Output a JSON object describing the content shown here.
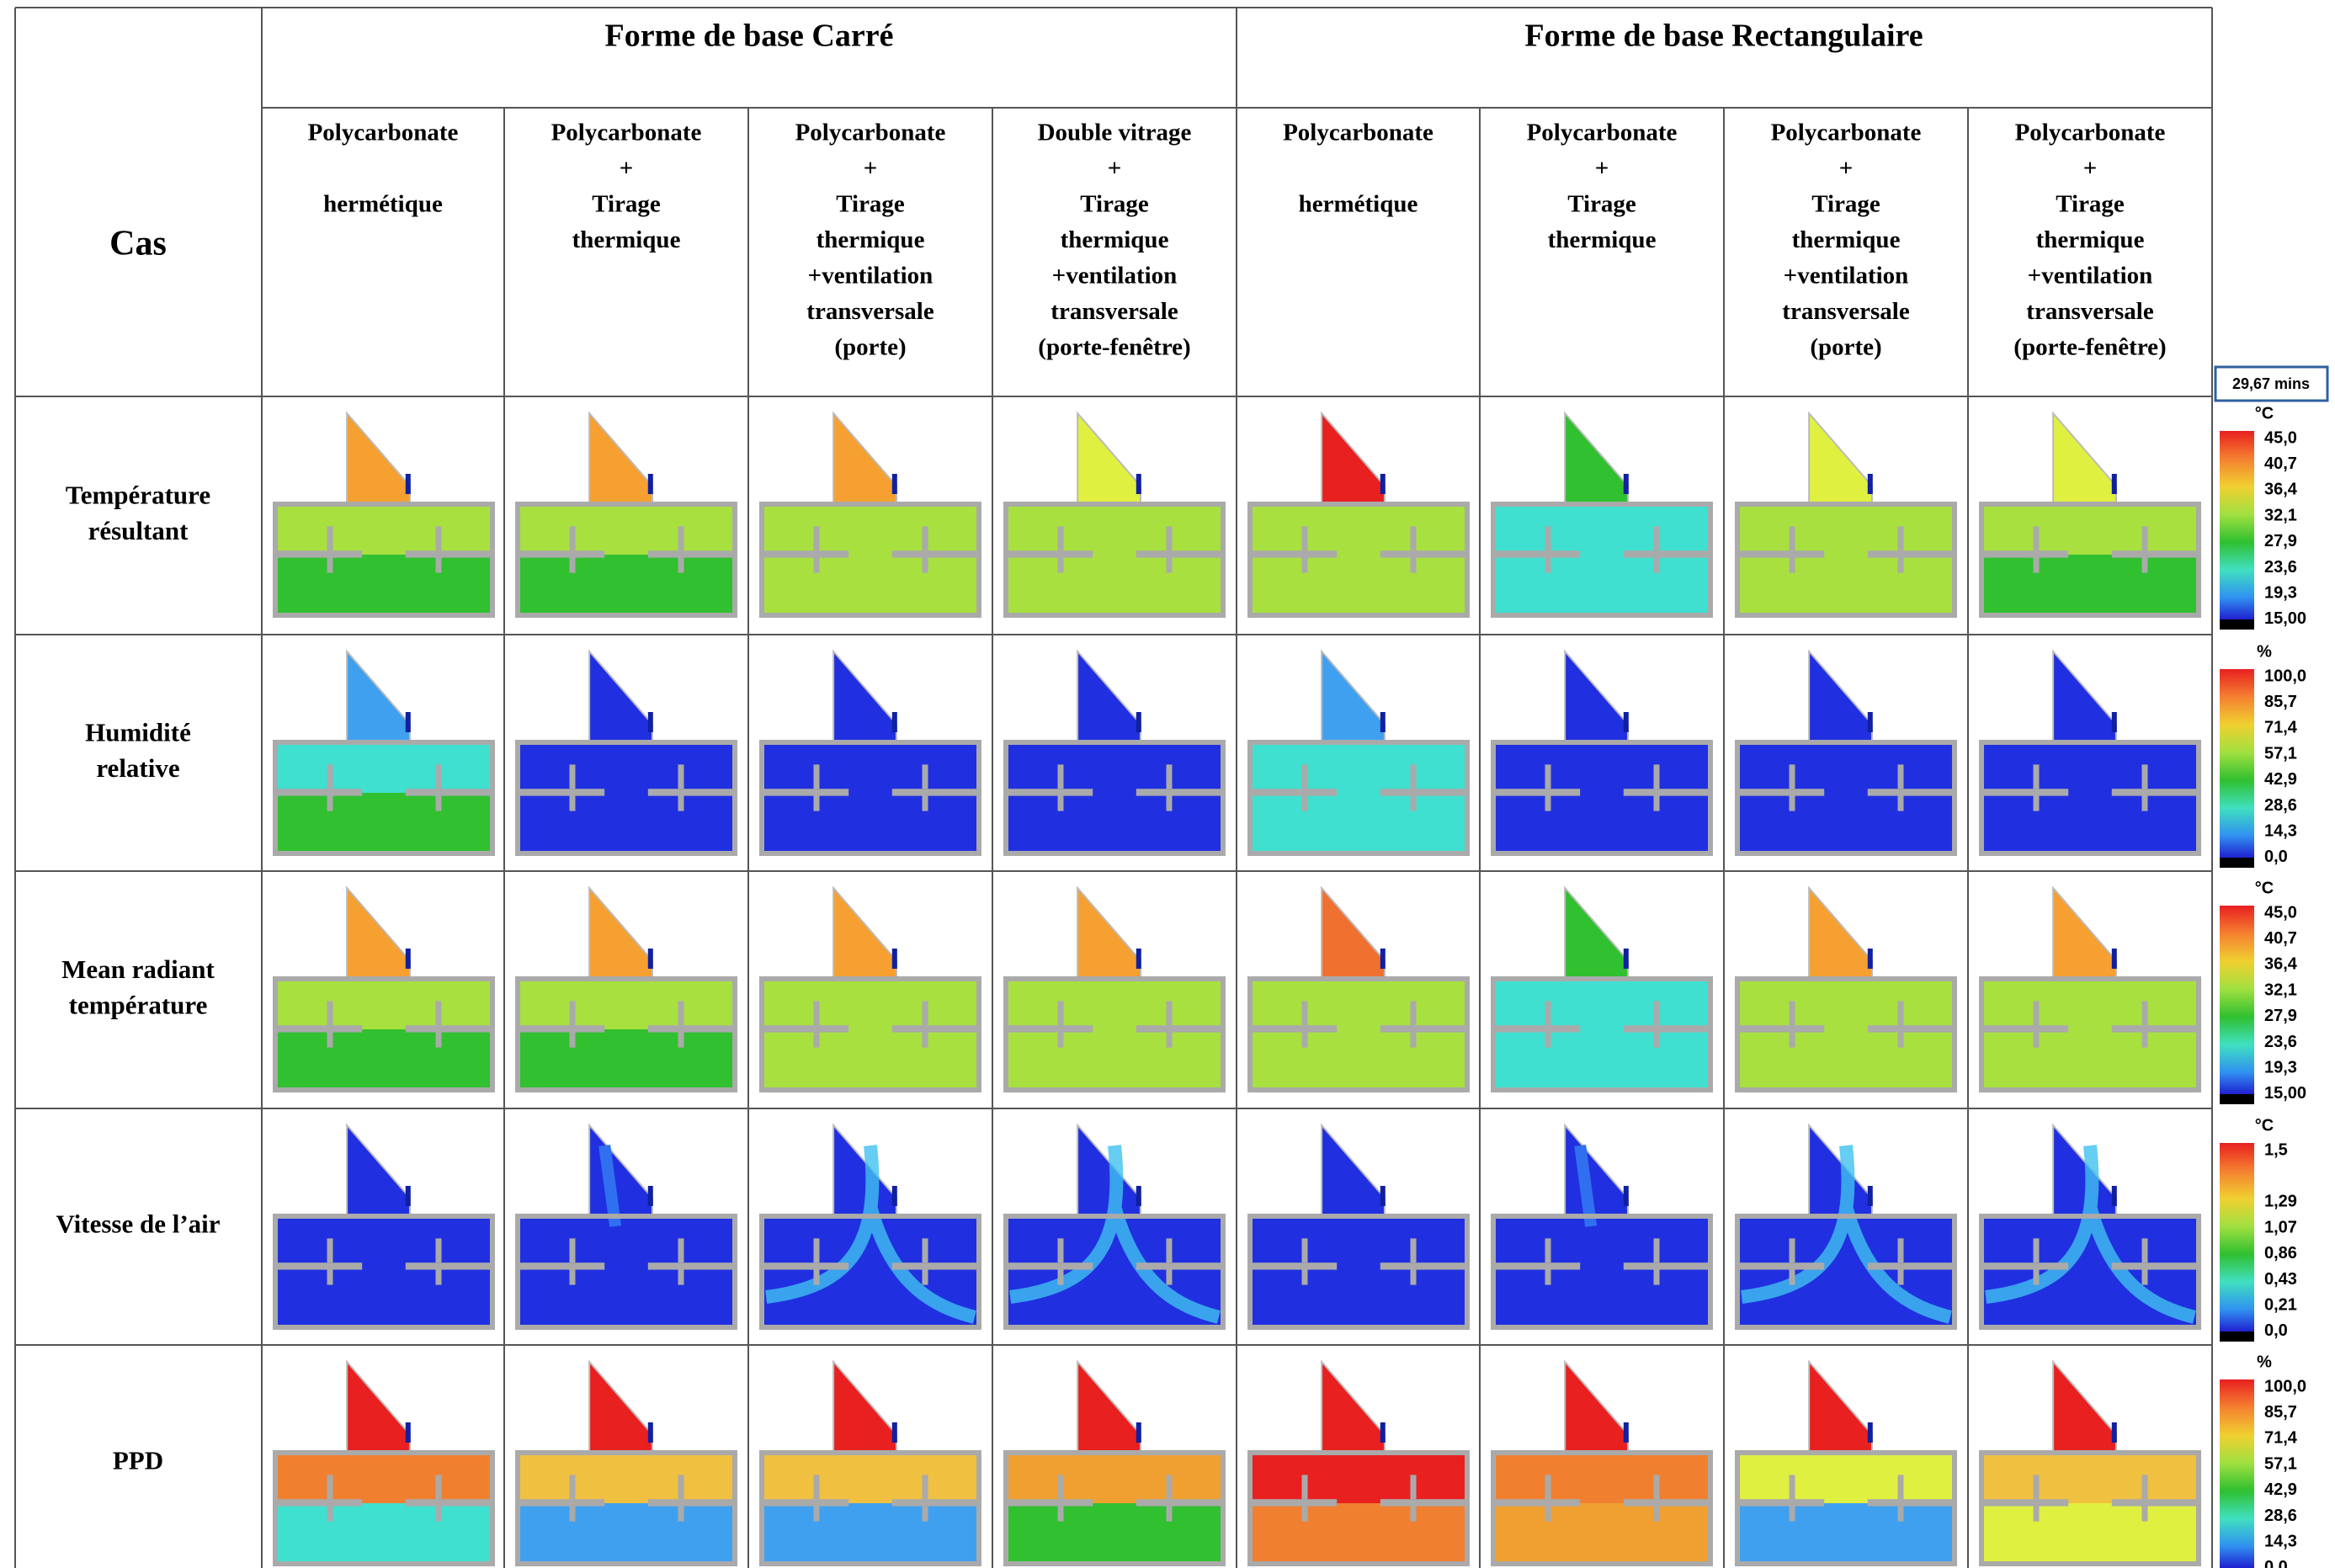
{
  "header": {
    "cas": "Cas",
    "groups": [
      "Forme de base Carré",
      "Forme de base Rectangulaire"
    ],
    "timestamp": "29,67 mins"
  },
  "table": {
    "columns": [
      [
        "Polycarbonate",
        "hermétique"
      ],
      [
        "Polycarbonate",
        "+",
        "Tirage",
        "thermique"
      ],
      [
        "Polycarbonate",
        "+",
        "Tirage",
        "thermique",
        "+ventilation",
        "transversale",
        "(porte)"
      ],
      [
        "Double  vitrage",
        "+",
        "Tirage",
        "thermique",
        "+ventilation",
        "transversale",
        "(porte-fenêtre)"
      ],
      [
        "Polycarbonate",
        "hermétique"
      ],
      [
        "Polycarbonate",
        "+",
        "Tirage",
        "thermique"
      ],
      [
        "Polycarbonate",
        "+",
        "Tirage",
        "thermique",
        "+ventilation",
        "transversale",
        "(porte)"
      ],
      [
        "Polycarbonate",
        "+",
        "Tirage",
        "thermique",
        "+ventilation",
        "transversale",
        "(porte-fenêtre)"
      ]
    ],
    "rows": [
      [
        "Température",
        "résultant"
      ],
      [
        "Humidité",
        "relative"
      ],
      [
        "Mean radiant",
        "température"
      ],
      [
        "Vitesse de l’air"
      ],
      [
        "PPD"
      ]
    ]
  },
  "legends": [
    {
      "unit": "°C",
      "ticks": [
        "45,0",
        "40,7",
        "36,4",
        "32,1",
        "27,9",
        "23,6",
        "19,3",
        "15,00"
      ]
    },
    {
      "unit": "%",
      "ticks": [
        "100,0",
        "85,7",
        "71,4",
        "57,1",
        "42,9",
        "28,6",
        "14,3",
        "0,0"
      ]
    },
    {
      "unit": "°C",
      "ticks": [
        "45,0",
        "40,7",
        "36,4",
        "32,1",
        "27,9",
        "23,6",
        "19,3",
        "15,00"
      ]
    },
    {
      "unit": "°C",
      "ticks": [
        "1,5",
        "1,29",
        "1,07",
        "0,86",
        "0,43",
        "0,21",
        "0,0"
      ]
    },
    {
      "unit": "%",
      "ticks": [
        "100,0",
        "85,7",
        "71,4",
        "57,1",
        "42,9",
        "28,6",
        "14,3",
        "0,0"
      ]
    }
  ]
}
